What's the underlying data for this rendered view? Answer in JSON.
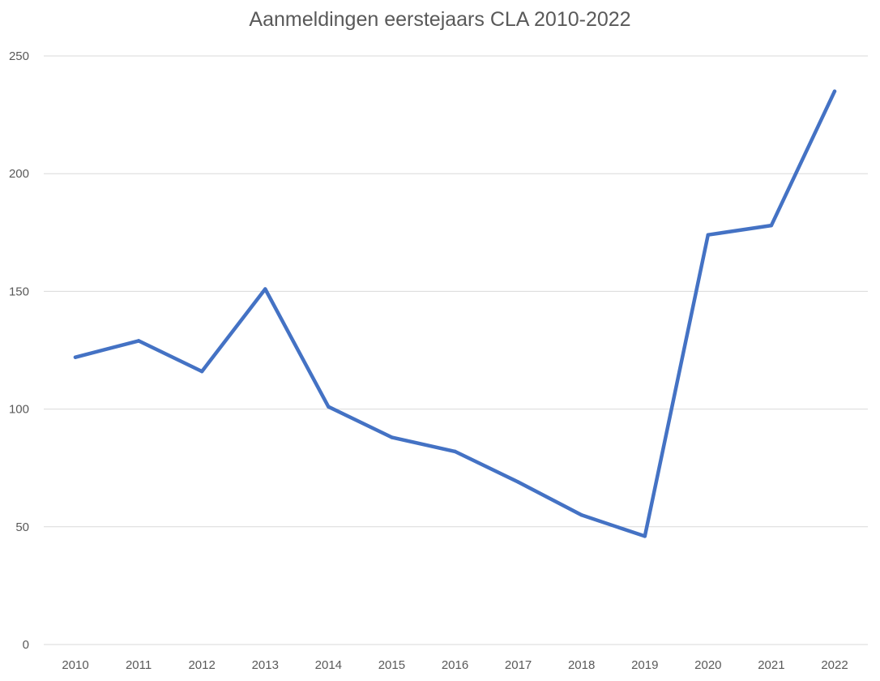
{
  "chart_data": {
    "type": "line",
    "title": "Aanmeldingen eerstejaars CLA 2010-2022",
    "xlabel": "",
    "ylabel": "",
    "categories": [
      "2010",
      "2011",
      "2012",
      "2013",
      "2014",
      "2015",
      "2016",
      "2017",
      "2018",
      "2019",
      "2020",
      "2021",
      "2022"
    ],
    "series": [
      {
        "values": [
          122,
          129,
          116,
          151,
          101,
          88,
          82,
          69,
          55,
          46,
          174,
          178,
          235
        ],
        "color": "#4472c4"
      }
    ],
    "ylim": [
      0,
      250
    ],
    "yticks": [
      0,
      50,
      100,
      150,
      200,
      250
    ],
    "grid": true,
    "legend": "none"
  }
}
